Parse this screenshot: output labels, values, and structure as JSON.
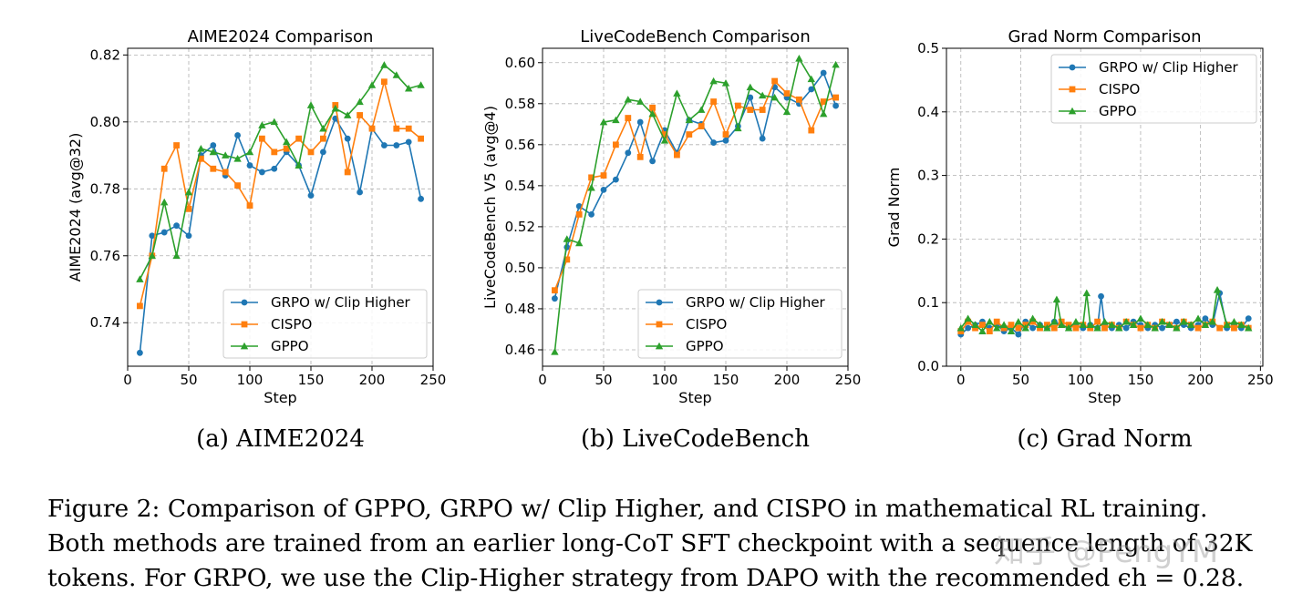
{
  "colors": {
    "grpo": "#1f77b4",
    "cispo": "#ff7f0e",
    "gppo": "#2ca02c"
  },
  "chart_data": [
    {
      "type": "line",
      "title": "AIME2024 Comparison",
      "xlabel": "Step",
      "ylabel": "AIME2024 (avg@32)",
      "xlim": [
        0,
        250
      ],
      "ylim": [
        0.727,
        0.822
      ],
      "xticks": [
        0,
        50,
        100,
        150,
        200,
        250
      ],
      "yticks": [
        0.74,
        0.76,
        0.78,
        0.8,
        0.82
      ],
      "ytick_labels": [
        "0.74",
        "0.76",
        "0.78",
        "0.80",
        "0.82"
      ],
      "grid": true,
      "legend_position": "lower-right",
      "caption": "(a) AIME2024",
      "series": [
        {
          "name": "GRPO w/ Clip Higher",
          "marker": "circle",
          "x": [
            10,
            20,
            30,
            40,
            50,
            60,
            70,
            80,
            90,
            100,
            110,
            120,
            130,
            140,
            150,
            160,
            170,
            180,
            190,
            200,
            210,
            220,
            230,
            240
          ],
          "values": [
            0.731,
            0.766,
            0.767,
            0.769,
            0.766,
            0.79,
            0.793,
            0.784,
            0.796,
            0.787,
            0.785,
            0.786,
            0.791,
            0.787,
            0.778,
            0.791,
            0.801,
            0.795,
            0.779,
            0.798,
            0.793,
            0.793,
            0.794,
            0.777
          ]
        },
        {
          "name": "CISPO",
          "marker": "square",
          "x": [
            10,
            20,
            30,
            40,
            50,
            60,
            70,
            80,
            90,
            100,
            110,
            120,
            130,
            140,
            150,
            160,
            170,
            180,
            190,
            200,
            210,
            220,
            230,
            240
          ],
          "values": [
            0.745,
            0.76,
            0.786,
            0.793,
            0.774,
            0.789,
            0.786,
            0.785,
            0.781,
            0.775,
            0.795,
            0.791,
            0.792,
            0.795,
            0.791,
            0.795,
            0.805,
            0.785,
            0.802,
            0.798,
            0.812,
            0.798,
            0.798,
            0.795
          ]
        },
        {
          "name": "GPPO",
          "marker": "triangle",
          "x": [
            10,
            20,
            30,
            40,
            50,
            60,
            70,
            80,
            90,
            100,
            110,
            120,
            130,
            140,
            150,
            160,
            170,
            180,
            190,
            200,
            210,
            220,
            230,
            240
          ],
          "values": [
            0.753,
            0.76,
            0.776,
            0.76,
            0.779,
            0.792,
            0.791,
            0.79,
            0.789,
            0.791,
            0.799,
            0.8,
            0.794,
            0.787,
            0.805,
            0.798,
            0.804,
            0.802,
            0.806,
            0.811,
            0.817,
            0.814,
            0.81,
            0.811
          ]
        }
      ]
    },
    {
      "type": "line",
      "title": "LiveCodeBench Comparison",
      "xlabel": "Step",
      "ylabel": "LiveCodeBench V5 (avg@4)",
      "xlim": [
        0,
        250
      ],
      "ylim": [
        0.452,
        0.607
      ],
      "xticks": [
        0,
        50,
        100,
        150,
        200,
        250
      ],
      "yticks": [
        0.46,
        0.48,
        0.5,
        0.52,
        0.54,
        0.56,
        0.58,
        0.6
      ],
      "ytick_labels": [
        "0.46",
        "0.48",
        "0.50",
        "0.52",
        "0.54",
        "0.56",
        "0.58",
        "0.60"
      ],
      "grid": true,
      "legend_position": "lower-right",
      "caption": "(b) LiveCodeBench",
      "series": [
        {
          "name": "GRPO w/ Clip Higher",
          "marker": "circle",
          "x": [
            10,
            20,
            30,
            40,
            50,
            60,
            70,
            80,
            90,
            100,
            110,
            120,
            130,
            140,
            150,
            160,
            170,
            180,
            190,
            200,
            210,
            220,
            230,
            240
          ],
          "values": [
            0.485,
            0.51,
            0.53,
            0.526,
            0.538,
            0.543,
            0.556,
            0.571,
            0.552,
            0.567,
            0.556,
            0.572,
            0.57,
            0.561,
            0.562,
            0.569,
            0.583,
            0.563,
            0.588,
            0.583,
            0.58,
            0.587,
            0.595,
            0.579
          ]
        },
        {
          "name": "CISPO",
          "marker": "square",
          "x": [
            10,
            20,
            30,
            40,
            50,
            60,
            70,
            80,
            90,
            100,
            110,
            120,
            130,
            140,
            150,
            160,
            170,
            180,
            190,
            200,
            210,
            220,
            230,
            240
          ],
          "values": [
            0.489,
            0.504,
            0.526,
            0.544,
            0.545,
            0.56,
            0.573,
            0.554,
            0.578,
            0.565,
            0.555,
            0.565,
            0.569,
            0.581,
            0.565,
            0.579,
            0.577,
            0.577,
            0.591,
            0.585,
            0.582,
            0.567,
            0.581,
            0.583
          ]
        },
        {
          "name": "GPPO",
          "marker": "triangle",
          "x": [
            10,
            20,
            30,
            40,
            50,
            60,
            70,
            80,
            90,
            100,
            110,
            120,
            130,
            140,
            150,
            160,
            170,
            180,
            190,
            200,
            210,
            220,
            230,
            240
          ],
          "values": [
            0.459,
            0.514,
            0.512,
            0.539,
            0.571,
            0.572,
            0.582,
            0.581,
            0.575,
            0.562,
            0.585,
            0.572,
            0.577,
            0.591,
            0.59,
            0.568,
            0.588,
            0.584,
            0.583,
            0.576,
            0.602,
            0.592,
            0.575,
            0.599
          ]
        }
      ]
    },
    {
      "type": "line",
      "title": "Grad Norm Comparison",
      "xlabel": "Step",
      "ylabel": "Grad Norm",
      "xlim": [
        -12,
        252
      ],
      "ylim": [
        0.0,
        0.5
      ],
      "xticks": [
        0,
        50,
        100,
        150,
        200,
        250
      ],
      "yticks": [
        0.0,
        0.1,
        0.2,
        0.3,
        0.4,
        0.5
      ],
      "ytick_labels": [
        "0.0",
        "0.1",
        "0.2",
        "0.3",
        "0.4",
        "0.5"
      ],
      "grid": true,
      "legend_position": "upper-right",
      "caption": "(c) Grad Norm",
      "series": [
        {
          "name": "GRPO w/ Clip Higher",
          "marker": "circle",
          "x": [
            0,
            6,
            12,
            18,
            24,
            30,
            36,
            42,
            48,
            54,
            60,
            66,
            72,
            78,
            84,
            90,
            96,
            102,
            108,
            114,
            117,
            120,
            126,
            132,
            138,
            144,
            150,
            156,
            162,
            168,
            174,
            180,
            186,
            192,
            198,
            204,
            210,
            216,
            222,
            228,
            234,
            240
          ],
          "values": [
            0.05,
            0.06,
            0.065,
            0.07,
            0.06,
            0.065,
            0.055,
            0.06,
            0.05,
            0.07,
            0.06,
            0.065,
            0.06,
            0.07,
            0.065,
            0.06,
            0.065,
            0.06,
            0.065,
            0.06,
            0.11,
            0.065,
            0.06,
            0.065,
            0.06,
            0.07,
            0.065,
            0.06,
            0.065,
            0.06,
            0.065,
            0.07,
            0.065,
            0.06,
            0.065,
            0.075,
            0.065,
            0.115,
            0.06,
            0.065,
            0.06,
            0.075
          ]
        },
        {
          "name": "CISPO",
          "marker": "square",
          "x": [
            0,
            6,
            12,
            18,
            24,
            30,
            36,
            42,
            48,
            54,
            60,
            66,
            72,
            78,
            84,
            90,
            96,
            102,
            108,
            114,
            120,
            126,
            132,
            138,
            144,
            150,
            156,
            162,
            168,
            174,
            180,
            186,
            192,
            198,
            204,
            210,
            216,
            222,
            228,
            234,
            240
          ],
          "values": [
            0.055,
            0.07,
            0.06,
            0.065,
            0.055,
            0.07,
            0.06,
            0.065,
            0.06,
            0.065,
            0.07,
            0.06,
            0.065,
            0.06,
            0.07,
            0.065,
            0.06,
            0.065,
            0.06,
            0.07,
            0.06,
            0.065,
            0.06,
            0.07,
            0.065,
            0.06,
            0.065,
            0.06,
            0.07,
            0.065,
            0.06,
            0.07,
            0.065,
            0.06,
            0.065,
            0.07,
            0.06,
            0.065,
            0.06,
            0.065,
            0.06
          ]
        },
        {
          "name": "GPPO",
          "marker": "triangle",
          "x": [
            0,
            6,
            12,
            18,
            24,
            30,
            36,
            42,
            48,
            54,
            60,
            66,
            72,
            78,
            80,
            84,
            90,
            96,
            102,
            105,
            108,
            114,
            120,
            126,
            132,
            138,
            144,
            150,
            156,
            162,
            168,
            174,
            180,
            186,
            192,
            198,
            204,
            210,
            214,
            222,
            228,
            234,
            240
          ],
          "values": [
            0.06,
            0.075,
            0.065,
            0.055,
            0.07,
            0.06,
            0.065,
            0.055,
            0.07,
            0.06,
            0.075,
            0.065,
            0.06,
            0.07,
            0.105,
            0.065,
            0.06,
            0.07,
            0.065,
            0.115,
            0.065,
            0.06,
            0.07,
            0.065,
            0.06,
            0.07,
            0.065,
            0.075,
            0.065,
            0.06,
            0.07,
            0.065,
            0.06,
            0.07,
            0.065,
            0.075,
            0.065,
            0.07,
            0.12,
            0.065,
            0.07,
            0.065,
            0.06
          ]
        }
      ]
    }
  ],
  "figure_caption": {
    "line1": "Figure 2: Comparison of GPPO, GRPO w/ Clip Higher, and CISPO in mathematical RL training.",
    "line2": "Both methods are trained from an earlier long-CoT SFT checkpoint with a sequence length of 32K",
    "line3": "tokens. For GRPO, we use the Clip-Higher strategy from DAPO with the recommended ϵh = 0.28."
  },
  "watermark": "知乎 @PengYM"
}
